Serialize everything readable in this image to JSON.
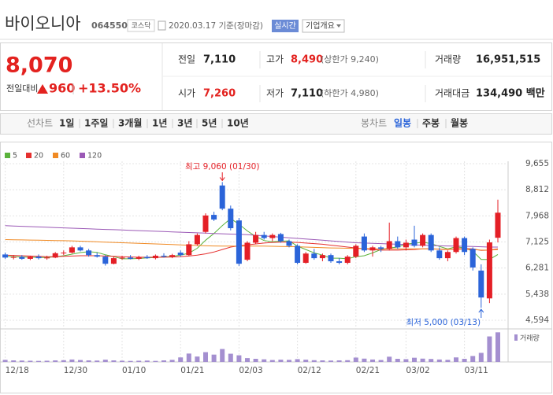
{
  "header": {
    "name": "바이오니아",
    "code": "064550",
    "market": "코스닥",
    "date": "2020.03.17 기준(장마감)",
    "realtime": "실시간",
    "company": "기업개요"
  },
  "summary": {
    "price": "8,070",
    "price_color": "#e3221f",
    "change_label": "전일대비",
    "change": "960",
    "rate": "+13.50%",
    "stats": [
      {
        "label": "전일",
        "value": "7,110"
      },
      {
        "label": "고가",
        "value": "8,490",
        "note": "(상한가 9,240)",
        "color": "#e3221f"
      },
      {
        "label": "거래량",
        "value": "16,951,515"
      },
      {
        "label": "시가",
        "value": "7,260",
        "color": "#e3221f"
      },
      {
        "label": "저가",
        "value": "7,110",
        "note": "(하한가 4,980)"
      },
      {
        "label": "거래대금",
        "value": "134,490 백만"
      }
    ]
  },
  "tabs": {
    "line_label": "선차트",
    "line": [
      "1일",
      "1주일",
      "3개월",
      "1년",
      "3년",
      "5년",
      "10년"
    ],
    "candle_label": "봉차트",
    "candle": [
      "일봉",
      "주봉",
      "월봉"
    ]
  },
  "chart_data": {
    "type": "candlestick",
    "categories": [
      "12/18",
      null,
      null,
      null,
      null,
      null,
      null,
      "12/30",
      null,
      null,
      null,
      null,
      null,
      null,
      "01/10",
      null,
      null,
      null,
      null,
      null,
      null,
      "01/21",
      null,
      null,
      null,
      null,
      null,
      null,
      "02/03",
      null,
      null,
      null,
      null,
      null,
      null,
      "02/12",
      null,
      null,
      null,
      null,
      null,
      null,
      "02/21",
      null,
      null,
      null,
      null,
      null,
      "03/02",
      null,
      null,
      null,
      null,
      null,
      null,
      "03/11",
      null,
      null,
      null,
      null
    ],
    "open": [
      6720,
      6620,
      6640,
      6580,
      6650,
      6600,
      6620,
      6760,
      6780,
      6950,
      6850,
      6700,
      6650,
      6420,
      6600,
      6620,
      6580,
      6640,
      6600,
      6680,
      6650,
      6780,
      6700,
      7050,
      7450,
      8000,
      8950,
      8200,
      7820,
      6550,
      7100,
      7350,
      7250,
      7380,
      7150,
      7000,
      6450,
      6750,
      6600,
      6700,
      6500,
      6450,
      6650,
      7300,
      6850,
      6950,
      6900,
      7150,
      6950,
      7200,
      7000,
      7350,
      6850,
      6600,
      6800,
      7250,
      6900,
      6200,
      5300,
      7260
    ],
    "high": [
      6780,
      6700,
      6700,
      6680,
      6720,
      6680,
      6800,
      6850,
      7000,
      7000,
      6900,
      6780,
      6700,
      6650,
      6680,
      6700,
      6680,
      6700,
      6720,
      6760,
      6740,
      6850,
      7150,
      7400,
      8050,
      8100,
      9060,
      8300,
      7900,
      7150,
      7450,
      7450,
      7400,
      7420,
      7200,
      7050,
      6800,
      6900,
      6750,
      6750,
      6600,
      6700,
      7050,
      7400,
      7000,
      7000,
      7750,
      7300,
      7200,
      7650,
      7400,
      7400,
      6950,
      6850,
      7300,
      7300,
      6950,
      6400,
      7200,
      8490
    ],
    "low": [
      6580,
      6560,
      6550,
      6540,
      6560,
      6550,
      6600,
      6700,
      6750,
      6820,
      6650,
      6620,
      6360,
      6400,
      6550,
      6560,
      6540,
      6580,
      6560,
      6620,
      6600,
      6650,
      6680,
      7000,
      7400,
      7800,
      8150,
      7500,
      6350,
      6500,
      7050,
      7200,
      7150,
      7100,
      6950,
      6400,
      6420,
      6550,
      6500,
      6450,
      6400,
      6400,
      6600,
      6800,
      6650,
      6800,
      6850,
      6900,
      6850,
      6950,
      6950,
      6800,
      6550,
      6500,
      6750,
      6700,
      6200,
      5000,
      5150,
      7110
    ],
    "close": [
      6620,
      6640,
      6580,
      6650,
      6600,
      6620,
      6760,
      6780,
      6950,
      6850,
      6700,
      6650,
      6420,
      6600,
      6620,
      6580,
      6640,
      6600,
      6680,
      6650,
      6700,
      6700,
      7050,
      7350,
      7980,
      7850,
      8200,
      7570,
      6420,
      7100,
      7350,
      7250,
      7350,
      7150,
      7000,
      6450,
      6750,
      6600,
      6700,
      6500,
      6450,
      6650,
      7000,
      6850,
      6950,
      6900,
      7150,
      6950,
      7100,
      7000,
      7350,
      6850,
      6600,
      6800,
      7250,
      6800,
      6300,
      5330,
      7110,
      8070
    ],
    "up_color": "#e41f26",
    "down_color": "#2b64d9",
    "series": [
      {
        "name": "5",
        "color": "#5bb33c",
        "values": [
          6660,
          6650,
          6640,
          6630,
          6620,
          6620,
          6650,
          6680,
          6730,
          6780,
          6810,
          6790,
          6710,
          6650,
          6580,
          6580,
          6590,
          6610,
          6620,
          6640,
          6660,
          6700,
          6760,
          6920,
          7180,
          7400,
          7650,
          7880,
          7700,
          7480,
          7300,
          7170,
          7130,
          7150,
          7160,
          6990,
          6880,
          6770,
          6700,
          6600,
          6600,
          6580,
          6650,
          6680,
          6770,
          6880,
          6930,
          6960,
          7060,
          7080,
          7120,
          7070,
          6980,
          6900,
          6970,
          6930,
          6830,
          6560,
          6560,
          6720
        ]
      },
      {
        "name": "20",
        "color": "#e5302f",
        "values": [
          6700,
          6690,
          6680,
          6670,
          6660,
          6650,
          6650,
          6660,
          6670,
          6680,
          6680,
          6680,
          6670,
          6660,
          6650,
          6640,
          6630,
          6630,
          6630,
          6630,
          6640,
          6650,
          6670,
          6700,
          6740,
          6800,
          6880,
          6960,
          7000,
          7030,
          7060,
          7090,
          7110,
          7120,
          7120,
          7110,
          7090,
          7070,
          7050,
          7020,
          6990,
          6960,
          6930,
          6900,
          6880,
          6860,
          6860,
          6860,
          6870,
          6880,
          6900,
          6900,
          6890,
          6880,
          6900,
          6910,
          6900,
          6850,
          6860,
          6900
        ]
      },
      {
        "name": "60",
        "color": "#f08a24",
        "values": [
          7200,
          7195,
          7190,
          7185,
          7180,
          7175,
          7170,
          7165,
          7160,
          7150,
          7140,
          7130,
          7120,
          7110,
          7100,
          7090,
          7080,
          7070,
          7060,
          7050,
          7040,
          7030,
          7020,
          7010,
          7000,
          6995,
          6990,
          6990,
          6990,
          6990,
          6990,
          6990,
          6985,
          6980,
          6975,
          6970,
          6960,
          6950,
          6940,
          6930,
          6925,
          6920,
          6915,
          6910,
          6905,
          6900,
          6900,
          6900,
          6900,
          6900,
          6900,
          6900,
          6895,
          6890,
          6890,
          6890,
          6880,
          6860,
          6860,
          6880
        ]
      },
      {
        "name": "120",
        "color": "#9b59b6",
        "values": [
          7650,
          7640,
          7630,
          7620,
          7610,
          7600,
          7590,
          7580,
          7570,
          7560,
          7550,
          7540,
          7530,
          7520,
          7510,
          7500,
          7490,
          7480,
          7470,
          7460,
          7450,
          7440,
          7430,
          7420,
          7410,
          7400,
          7390,
          7380,
          7370,
          7360,
          7340,
          7320,
          7300,
          7280,
          7260,
          7240,
          7220,
          7200,
          7180,
          7160,
          7140,
          7120,
          7100,
          7090,
          7080,
          7070,
          7060,
          7050,
          7040,
          7030,
          7020,
          7010,
          7000,
          6995,
          6990,
          6985,
          6980,
          6970,
          6960,
          6960
        ]
      }
    ],
    "volume": {
      "name": "거래량",
      "color": "#a48fd0",
      "values": [
        1200000,
        900000,
        800000,
        700000,
        600000,
        700000,
        900000,
        1000000,
        1400000,
        1100000,
        900000,
        800000,
        1300000,
        900000,
        700000,
        600000,
        700000,
        800000,
        600000,
        900000,
        1200000,
        2600000,
        4800000,
        3100000,
        5600000,
        4200000,
        7400000,
        4700000,
        3800000,
        2200000,
        1800000,
        1500000,
        1100000,
        1300000,
        1200000,
        1600000,
        1300000,
        1000000,
        900000,
        800000,
        900000,
        1000000,
        2500000,
        1900000,
        1400000,
        1100000,
        3000000,
        1800000,
        1600000,
        2400000,
        1900000,
        1700000,
        1400000,
        1200000,
        2600000,
        1800000,
        3400000,
        5200000,
        14600000,
        16951515
      ]
    },
    "volume_ylim": [
      0,
      18000000
    ],
    "ylim": [
      4594,
      9655
    ],
    "yticks": [
      {
        "value": 9655,
        "label": "9,655"
      },
      {
        "value": 8812,
        "label": "8,812"
      },
      {
        "value": 7968,
        "label": "7,968"
      },
      {
        "value": 7125,
        "label": "7,125"
      },
      {
        "value": 6281,
        "label": "6,281"
      },
      {
        "value": 5438,
        "label": "5,438"
      },
      {
        "value": 4594,
        "label": "4,594"
      }
    ],
    "grid": true,
    "annotations": [
      {
        "text": "최고 9,060 (01/30)",
        "color": "#e41f26"
      },
      {
        "text": "최저 5,000 (03/13)",
        "color": "#2b64d9"
      }
    ]
  }
}
